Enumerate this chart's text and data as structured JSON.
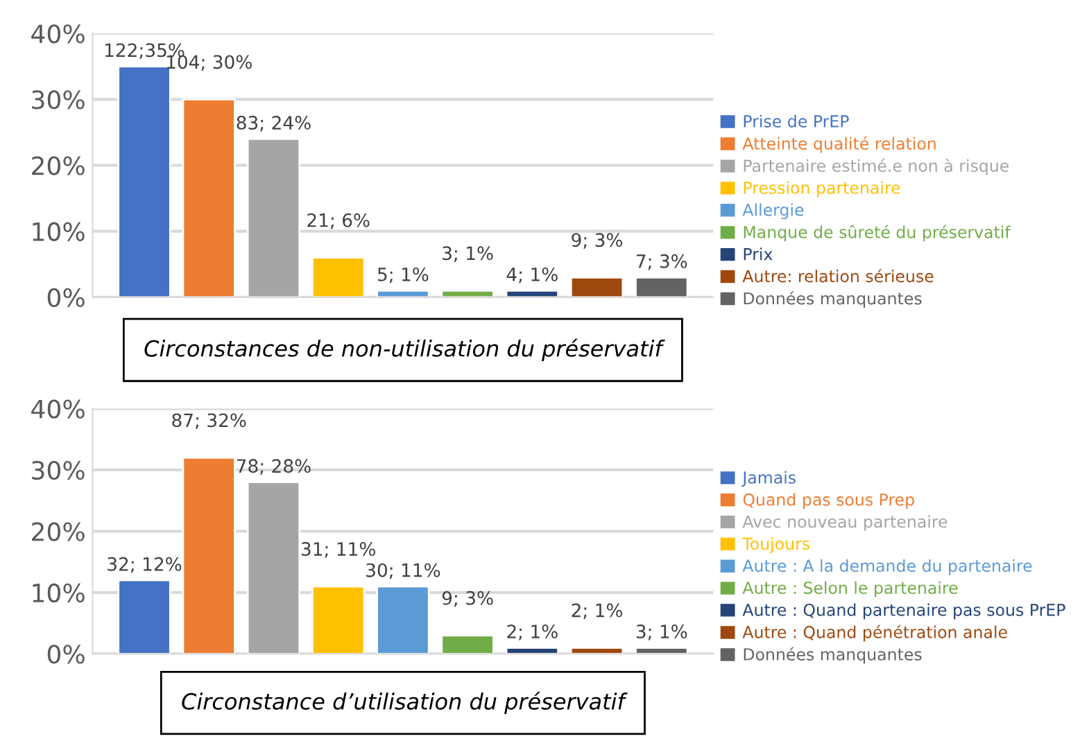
{
  "chart_data": [
    {
      "type": "bar",
      "title": "Circonstances de non-utilisation du préservatif",
      "categories": [
        null,
        null,
        null,
        null,
        null,
        null,
        null,
        null,
        null
      ],
      "ylim": [
        0,
        40
      ],
      "yticks": [
        {
          "value": 0,
          "label": "0%"
        },
        {
          "value": 10,
          "label": "10%"
        },
        {
          "value": 20,
          "label": "20%"
        },
        {
          "value": 30,
          "label": "30%"
        },
        {
          "value": 40,
          "label": "40%"
        }
      ],
      "grid": "y",
      "legend": "right",
      "tick_labels": "y",
      "series": [
        {
          "name": "Prise de PrEP",
          "color": "#4472c4",
          "values": [
            35,
            null,
            null,
            null,
            null,
            null,
            null,
            null,
            null
          ],
          "value_labels": [
            "122;35%",
            null,
            null,
            null,
            null,
            null,
            null,
            null,
            null
          ]
        },
        {
          "name": "Atteinte qualité relation",
          "color": "#ed7d31",
          "values": [
            null,
            30,
            null,
            null,
            null,
            null,
            null,
            null,
            null
          ],
          "value_labels": [
            null,
            "104; 30%",
            null,
            null,
            null,
            null,
            null,
            null,
            null
          ]
        },
        {
          "name": "Partenaire estimé.e non à risque",
          "color": "#a5a5a5",
          "values": [
            null,
            null,
            24,
            null,
            null,
            null,
            null,
            null,
            null
          ],
          "value_labels": [
            null,
            null,
            "83; 24%",
            null,
            null,
            null,
            null,
            null,
            null
          ]
        },
        {
          "name": "Pression partenaire",
          "color": "#ffc000",
          "values": [
            null,
            null,
            null,
            6,
            null,
            null,
            null,
            null,
            null
          ],
          "value_labels": [
            null,
            null,
            null,
            "21; 6%",
            null,
            null,
            null,
            null,
            null
          ]
        },
        {
          "name": "Allergie",
          "color": "#5b9bd5",
          "values": [
            null,
            null,
            null,
            null,
            1,
            null,
            null,
            null,
            null
          ],
          "value_labels": [
            null,
            null,
            null,
            null,
            "5; 1%",
            null,
            null,
            null,
            null
          ]
        },
        {
          "name": "Manque de sûreté du préservatif",
          "color": "#70ad47",
          "values": [
            null,
            null,
            null,
            null,
            null,
            1,
            null,
            null,
            null
          ],
          "value_labels": [
            null,
            null,
            null,
            null,
            null,
            "3; 1%",
            null,
            null,
            null
          ]
        },
        {
          "name": "Prix",
          "color": "#264478",
          "values": [
            null,
            null,
            null,
            null,
            null,
            null,
            1,
            null,
            null
          ],
          "value_labels": [
            null,
            null,
            null,
            null,
            null,
            null,
            "4; 1%",
            null,
            null
          ]
        },
        {
          "name": "Autre: relation sérieuse",
          "color": "#9e480e",
          "values": [
            null,
            null,
            null,
            null,
            null,
            null,
            null,
            3,
            null
          ],
          "value_labels": [
            null,
            null,
            null,
            null,
            null,
            null,
            null,
            "9; 3%",
            null
          ]
        },
        {
          "name": "Données manquantes",
          "color": "#636363",
          "values": [
            null,
            null,
            null,
            null,
            null,
            null,
            null,
            null,
            3
          ],
          "value_labels": [
            null,
            null,
            null,
            null,
            null,
            null,
            null,
            null,
            "7; 3%"
          ]
        }
      ]
    },
    {
      "type": "bar",
      "title": "Circonstance d’utilisation du préservatif",
      "categories": [
        null,
        null,
        null,
        null,
        null,
        null,
        null,
        null,
        null
      ],
      "ylim": [
        0,
        40
      ],
      "yticks": [
        {
          "value": 0,
          "label": "0%"
        },
        {
          "value": 10,
          "label": "10%"
        },
        {
          "value": 20,
          "label": "20%"
        },
        {
          "value": 30,
          "label": "30%"
        },
        {
          "value": 40,
          "label": "40%"
        }
      ],
      "grid": "y",
      "legend": "right",
      "tick_labels": "y",
      "series": [
        {
          "name": "Jamais",
          "color": "#4472c4",
          "values": [
            12,
            null,
            null,
            null,
            null,
            null,
            null,
            null,
            null
          ],
          "value_labels": [
            "32; 12%",
            null,
            null,
            null,
            null,
            null,
            null,
            null,
            null
          ]
        },
        {
          "name": "Quand pas sous Prep",
          "color": "#ed7d31",
          "values": [
            null,
            32,
            null,
            null,
            null,
            null,
            null,
            null,
            null
          ],
          "value_labels": [
            null,
            "87; 32%",
            null,
            null,
            null,
            null,
            null,
            null,
            null
          ]
        },
        {
          "name": "Avec nouveau partenaire",
          "color": "#a5a5a5",
          "values": [
            null,
            null,
            28,
            null,
            null,
            null,
            null,
            null,
            null
          ],
          "value_labels": [
            null,
            null,
            "78; 28%",
            null,
            null,
            null,
            null,
            null,
            null
          ]
        },
        {
          "name": "Toujours",
          "color": "#ffc000",
          "values": [
            null,
            null,
            null,
            11,
            null,
            null,
            null,
            null,
            null
          ],
          "value_labels": [
            null,
            null,
            null,
            "31; 11%",
            null,
            null,
            null,
            null,
            null
          ]
        },
        {
          "name": "Autre : A la demande du partenaire",
          "color": "#5b9bd5",
          "values": [
            null,
            null,
            null,
            null,
            11,
            null,
            null,
            null,
            null
          ],
          "value_labels": [
            null,
            null,
            null,
            null,
            "30; 11%",
            null,
            null,
            null,
            null
          ]
        },
        {
          "name": "Autre : Selon le partenaire",
          "color": "#70ad47",
          "values": [
            null,
            null,
            null,
            null,
            null,
            3,
            null,
            null,
            null
          ],
          "value_labels": [
            null,
            null,
            null,
            null,
            null,
            "9; 3%",
            null,
            null,
            null
          ]
        },
        {
          "name": "Autre : Quand partenaire pas sous PrEP",
          "color": "#264478",
          "values": [
            null,
            null,
            null,
            null,
            null,
            null,
            1,
            null,
            null
          ],
          "value_labels": [
            null,
            null,
            null,
            null,
            null,
            null,
            "2; 1%",
            null,
            null
          ]
        },
        {
          "name": "Autre : Quand pénétration anale",
          "color": "#9e480e",
          "values": [
            null,
            null,
            null,
            null,
            null,
            null,
            null,
            1,
            null
          ],
          "value_labels": [
            null,
            null,
            null,
            null,
            null,
            null,
            null,
            "2; 1%",
            null
          ]
        },
        {
          "name": "Données manquantes",
          "color": "#636363",
          "values": [
            null,
            null,
            null,
            null,
            null,
            null,
            null,
            null,
            1
          ],
          "value_labels": [
            null,
            null,
            null,
            null,
            null,
            null,
            null,
            null,
            "3; 1%"
          ]
        }
      ]
    }
  ]
}
